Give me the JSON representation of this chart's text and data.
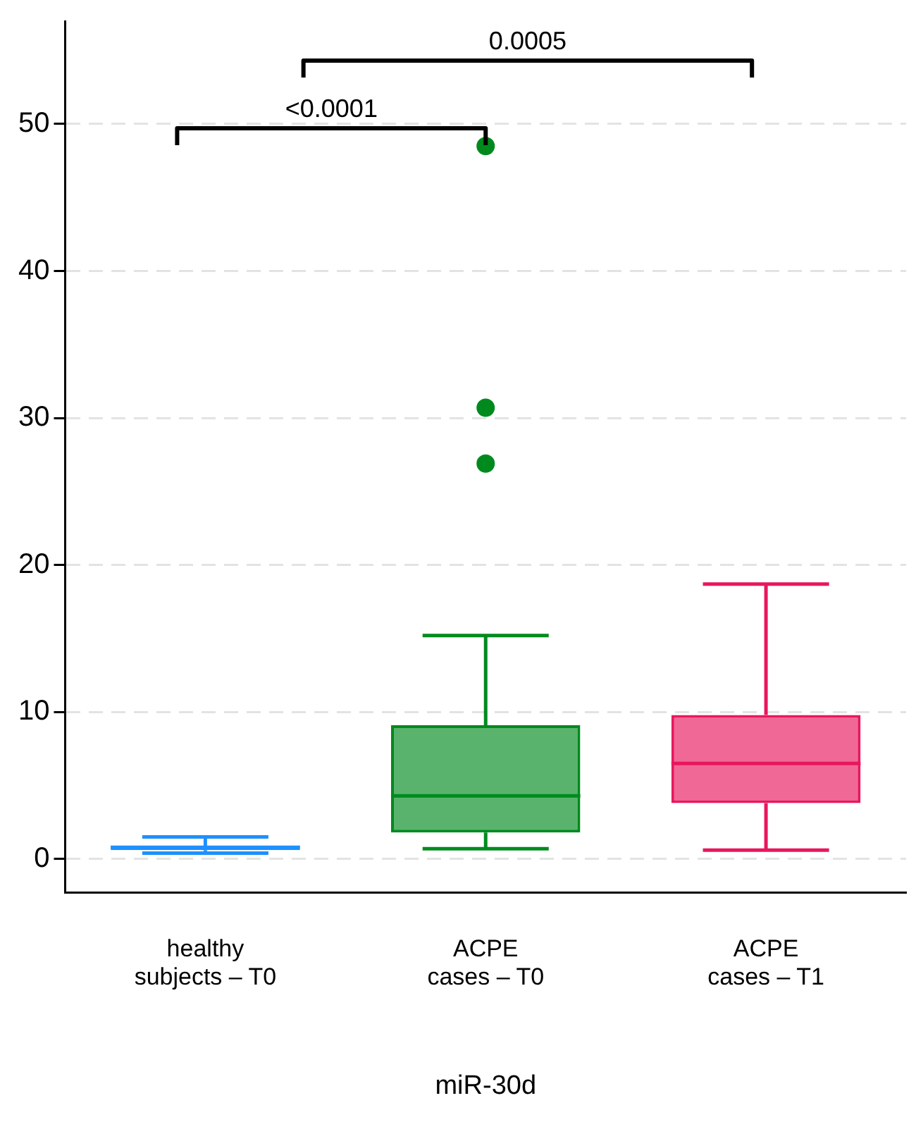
{
  "chart_data": {
    "type": "box",
    "xlabel": "miR-30d",
    "categories": [
      "healthy\nsubjects – T0",
      "ACPE\ncases – T0",
      "ACPE\ncases – T1"
    ],
    "colors": [
      "#1e90ff",
      "#008a1e",
      "#e8175d"
    ],
    "boxes": [
      {
        "low": 0.4,
        "q1": 0.6,
        "median": 0.8,
        "q3": 0.9,
        "high": 1.5
      },
      {
        "low": 0.7,
        "q1": 1.8,
        "median": 4.3,
        "q3": 9.1,
        "high": 15.2,
        "outliers": [
          26.9,
          30.7,
          48.5
        ]
      },
      {
        "low": 0.6,
        "q1": 3.8,
        "median": 6.5,
        "q3": 9.8,
        "high": 18.7
      }
    ],
    "ylim": [
      -2.3,
      57
    ],
    "yticks": [
      0,
      10,
      20,
      30,
      40,
      50
    ],
    "grid": "y",
    "marker": "circle",
    "legend": false,
    "annotations": [
      "<0.0001",
      "0.0005"
    ]
  }
}
